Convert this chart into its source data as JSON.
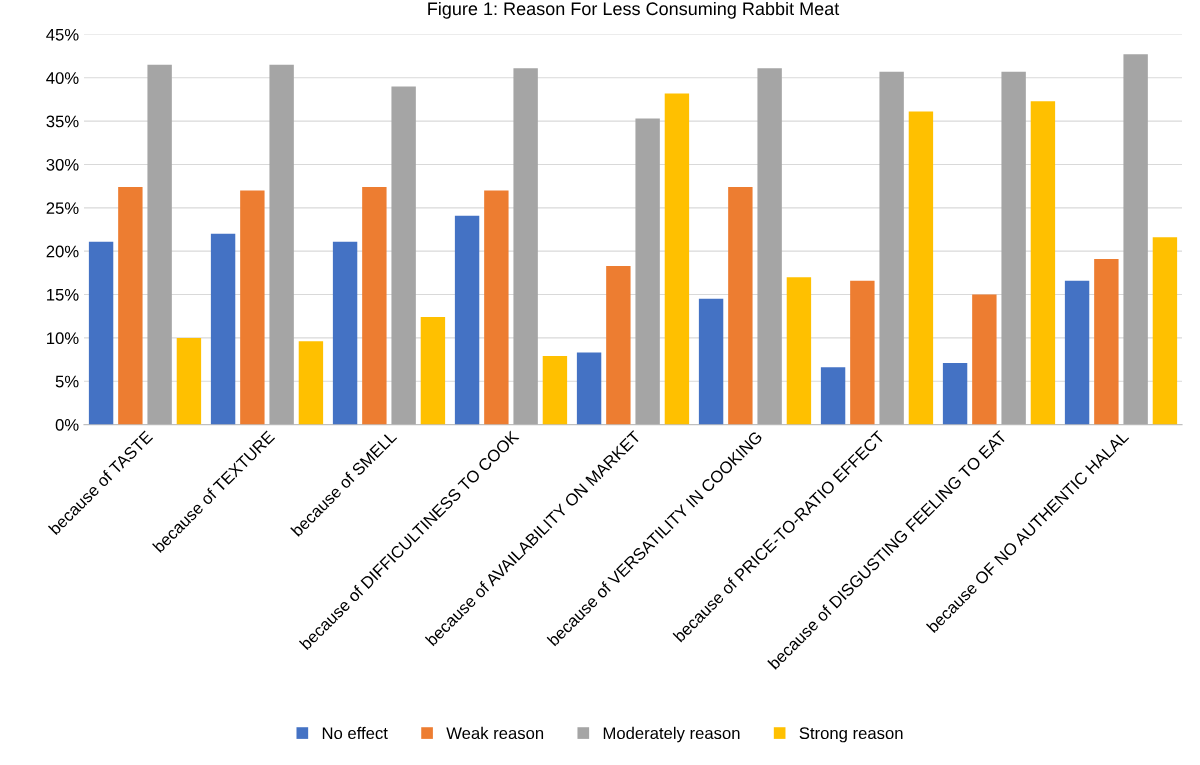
{
  "chart_data": {
    "type": "bar",
    "title": "Figure 1: Reason For Less Consuming Rabbit Meat",
    "categories": [
      "because of TASTE",
      "because of TEXTURE",
      "because of SMELL",
      "because of DIFFICULTINESS TO COOK",
      "because of AVAILABILITY ON MARKET",
      "because of VERSATILITY IN COOKING",
      "because of PRICE-TO-RATIO EFFECT",
      "because of DISGUSTING FEELING TO EAT",
      "because OF NO AUTHENTIC HALAL"
    ],
    "series": [
      {
        "name": "No effect",
        "color": "#4472c4",
        "values": [
          21.1,
          22.0,
          21.1,
          24.1,
          8.3,
          14.5,
          6.6,
          7.1,
          16.6
        ]
      },
      {
        "name": "Weak reason",
        "color": "#ed7d31",
        "values": [
          27.4,
          27.0,
          27.4,
          27.0,
          18.3,
          27.4,
          16.6,
          15.0,
          19.1
        ]
      },
      {
        "name": "Moderately reason",
        "color": "#a5a5a5",
        "values": [
          41.5,
          41.5,
          39.0,
          41.1,
          35.3,
          41.1,
          40.7,
          40.7,
          42.7
        ]
      },
      {
        "name": "Strong reason",
        "color": "#ffc000",
        "values": [
          10.0,
          9.6,
          12.4,
          7.9,
          38.2,
          17.0,
          36.1,
          37.3,
          21.6
        ]
      }
    ],
    "ylim": [
      0,
      45
    ],
    "yticks": [
      {
        "value": 0,
        "label": "0%"
      },
      {
        "value": 5,
        "label": "5%"
      },
      {
        "value": 10,
        "label": "10%"
      },
      {
        "value": 15,
        "label": "15%"
      },
      {
        "value": 20,
        "label": "20%"
      },
      {
        "value": 25,
        "label": "25%"
      },
      {
        "value": 30,
        "label": "30%"
      },
      {
        "value": 35,
        "label": "35%"
      },
      {
        "value": 40,
        "label": "40%"
      },
      {
        "value": 45,
        "label": "45%"
      }
    ],
    "grid": "y",
    "legend": "bottom"
  }
}
